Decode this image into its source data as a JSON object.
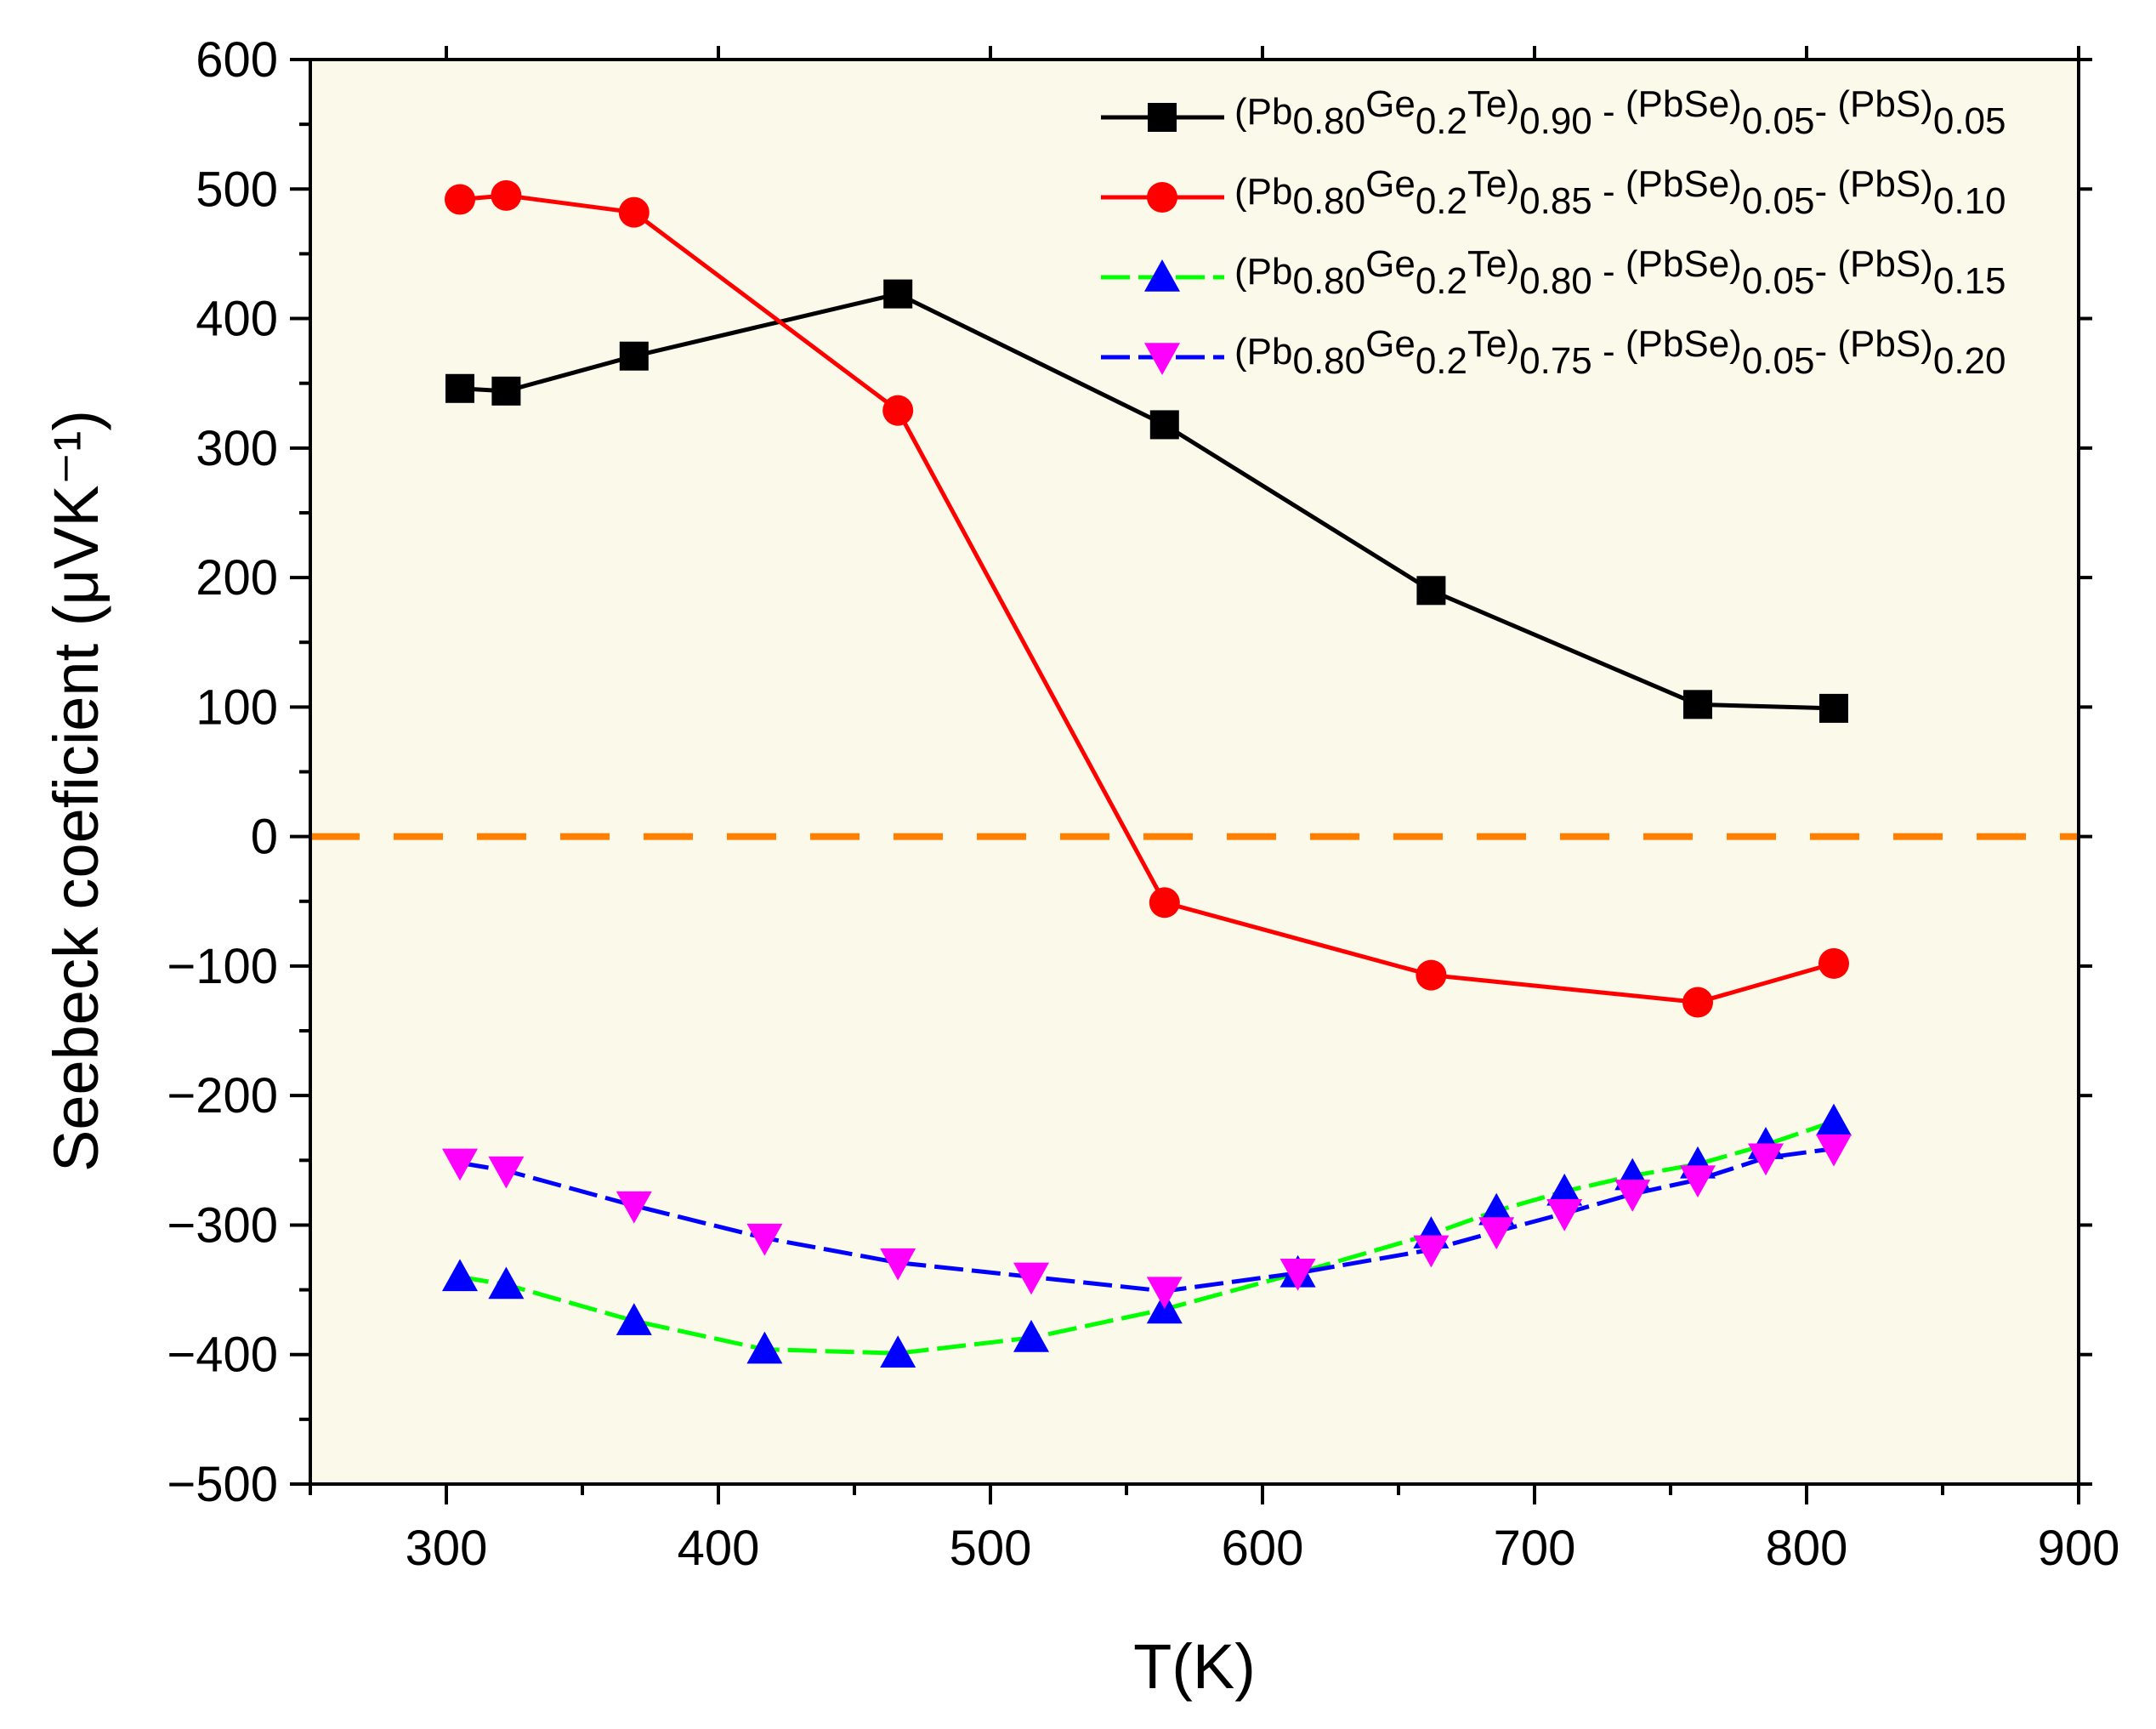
{
  "chart_data": {
    "type": "line",
    "title": "",
    "xlabel": "T(K)",
    "ylabel": "Seebeck coeficient (μVK⁻¹)",
    "xlim": [
      250,
      900
    ],
    "ylim": [
      -500,
      600
    ],
    "xticks": [
      300,
      400,
      500,
      600,
      700,
      800,
      900
    ],
    "yticks": [
      -500,
      -400,
      -300,
      -200,
      -100,
      0,
      100,
      200,
      300,
      400,
      500,
      600
    ],
    "background": "#fbf9ea",
    "reference_line": {
      "y": 0,
      "color": "#ff8000",
      "style": "dashed"
    },
    "series": [
      {
        "name": "(Pb0.80Ge0.2Te)0.90 - (PbSe)0.05- (PbS)0.05",
        "label_parts": [
          [
            "(Pb",
            "n"
          ],
          [
            "0.80",
            "sub"
          ],
          [
            "Ge",
            "sup"
          ],
          [
            "0.2",
            "sub"
          ],
          [
            "Te)",
            "sup"
          ],
          [
            "0.90",
            "sub"
          ],
          [
            " - ",
            "n"
          ],
          [
            "(PbSe)",
            "sup"
          ],
          [
            "0.05",
            "sub"
          ],
          [
            "- ",
            "n"
          ],
          [
            "(PbS)",
            "sup"
          ],
          [
            "0.05",
            "sub"
          ]
        ],
        "color": "#000000",
        "line_color": "#000000",
        "marker": "square",
        "dash": "solid",
        "x": [
          305,
          322,
          369,
          466,
          564,
          662,
          760,
          810
        ],
        "y": [
          346,
          344,
          371,
          419,
          318,
          190,
          102,
          99
        ]
      },
      {
        "name": "(Pb0.80Ge0.2Te)0.85 - (PbSe)0.05- (PbS)0.10",
        "label_parts": [
          [
            "(Pb",
            "n"
          ],
          [
            "0.80",
            "sub"
          ],
          [
            "Ge",
            "sup"
          ],
          [
            "0.2",
            "sub"
          ],
          [
            "Te)",
            "sup"
          ],
          [
            "0.85",
            "sub"
          ],
          [
            " - ",
            "n"
          ],
          [
            "(PbSe)",
            "sup"
          ],
          [
            "0.05",
            "sub"
          ],
          [
            "- ",
            "n"
          ],
          [
            "(PbS)",
            "sup"
          ],
          [
            "0.10",
            "sub"
          ]
        ],
        "color": "#ff0000",
        "line_color": "#ff0000",
        "marker": "circle",
        "dash": "solid",
        "x": [
          305,
          322,
          369,
          466,
          564,
          662,
          760,
          810
        ],
        "y": [
          492,
          495,
          482,
          329,
          -51,
          -107,
          -128,
          -98
        ]
      },
      {
        "name": "(Pb0.80Ge0.2Te)0.80 - (PbSe)0.05- (PbS)0.15",
        "label_parts": [
          [
            "(Pb",
            "n"
          ],
          [
            "0.80",
            "sub"
          ],
          [
            "Ge",
            "sup"
          ],
          [
            "0.2",
            "sub"
          ],
          [
            "Te)",
            "sup"
          ],
          [
            "0.80",
            "sub"
          ],
          [
            " - ",
            "n"
          ],
          [
            "(PbSe)",
            "sup"
          ],
          [
            "0.05",
            "sub"
          ],
          [
            "- ",
            "n"
          ],
          [
            "(PbS)",
            "sup"
          ],
          [
            "0.15",
            "sub"
          ]
        ],
        "color": "#0000ff",
        "line_color": "#00ff00",
        "marker": "triangle-up",
        "dash": "dashed",
        "x": [
          305,
          322,
          369,
          417,
          466,
          515,
          564,
          613,
          662,
          686,
          711,
          736,
          760,
          785,
          810
        ],
        "y": [
          -340,
          -346,
          -374,
          -396,
          -399,
          -387,
          -365,
          -337,
          -307,
          -289,
          -274,
          -262,
          -253,
          -238,
          -220
        ]
      },
      {
        "name": "(Pb0.80Ge0.2Te)0.75 - (PbSe)0.05- (PbS)0.20",
        "label_parts": [
          [
            "(Pb",
            "n"
          ],
          [
            "0.80",
            "sub"
          ],
          [
            "Ge",
            "sup"
          ],
          [
            "0.2",
            "sub"
          ],
          [
            "Te)",
            "sup"
          ],
          [
            "0.75",
            "sub"
          ],
          [
            " - ",
            "n"
          ],
          [
            "(PbSe)",
            "sup"
          ],
          [
            "0.05",
            "sub"
          ],
          [
            "- ",
            "n"
          ],
          [
            "(PbS)",
            "sup"
          ],
          [
            "0.20",
            "sub"
          ]
        ],
        "color": "#ff00ff",
        "line_color": "#0000ff",
        "marker": "triangle-down",
        "dash": "dashed",
        "x": [
          305,
          322,
          369,
          417,
          466,
          515,
          564,
          613,
          662,
          686,
          711,
          736,
          760,
          785,
          810
        ],
        "y": [
          -252,
          -258,
          -285,
          -310,
          -329,
          -340,
          -351,
          -337,
          -319,
          -305,
          -291,
          -276,
          -265,
          -248,
          -241
        ]
      }
    ]
  }
}
